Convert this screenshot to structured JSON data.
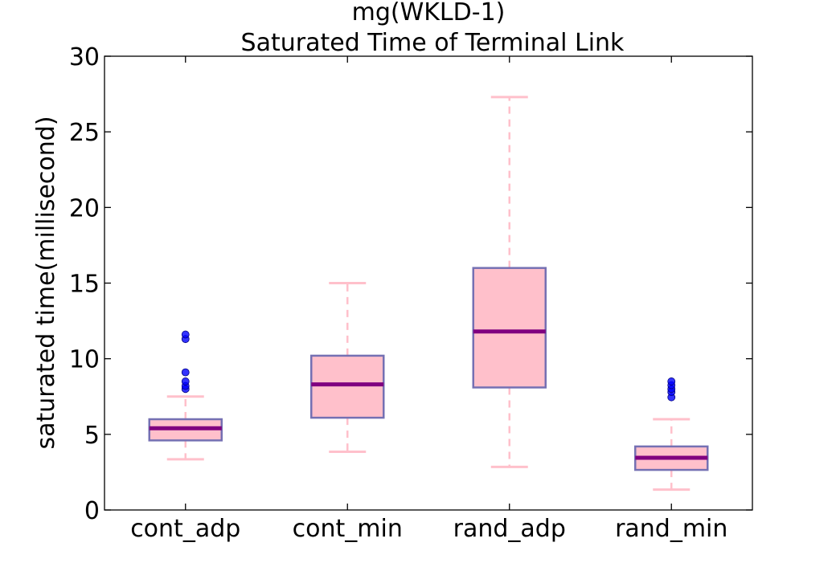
{
  "chart_data": {
    "type": "boxplot",
    "title": "mg(WKLD-1)",
    "subtitle": "Saturated Time of Terminal Link",
    "xlabel": "",
    "ylabel": "saturated time(millisecond)",
    "ylim": [
      0,
      30
    ],
    "yticks": [
      0,
      5,
      10,
      15,
      20,
      25,
      30
    ],
    "categories": [
      "cont_adp",
      "cont_min",
      "rand_adp",
      "rand_min"
    ],
    "boxes": [
      {
        "name": "cont_adp",
        "whisker_low": 3.35,
        "q1": 4.6,
        "median": 5.4,
        "q3": 6.0,
        "whisker_high": 7.5,
        "outliers": [
          8.0,
          8.2,
          8.5,
          9.1,
          11.3,
          11.6
        ]
      },
      {
        "name": "cont_min",
        "whisker_low": 3.85,
        "q1": 6.1,
        "median": 8.3,
        "q3": 10.2,
        "whisker_high": 15.0,
        "outliers": []
      },
      {
        "name": "rand_adp",
        "whisker_low": 2.85,
        "q1": 8.1,
        "median": 11.8,
        "q3": 16.0,
        "whisker_high": 27.3,
        "outliers": []
      },
      {
        "name": "rand_min",
        "whisker_low": 1.35,
        "q1": 2.65,
        "median": 3.45,
        "q3": 4.2,
        "whisker_high": 6.0,
        "outliers": [
          7.45,
          7.8,
          8.0,
          8.25,
          8.5
        ]
      }
    ],
    "grid": false,
    "colors": {
      "box_fill": "#ffc0cb",
      "box_edge": "#7570b3",
      "median": "#800080",
      "whisker": "#ffc0cb",
      "outlier": "#0000ff"
    }
  }
}
